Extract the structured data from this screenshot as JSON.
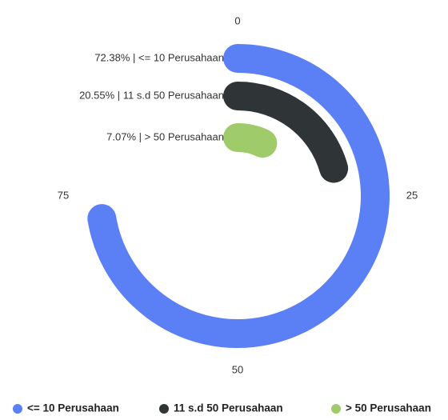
{
  "chart_data": {
    "type": "radialBar",
    "categories": [
      "<= 10 Perusahaan",
      "11 s.d 50 Perusahaan",
      "> 50 Perusahaan"
    ],
    "values": [
      72.38,
      20.55,
      7.07
    ],
    "value_labels": [
      "72.38% | <= 10 Perusahaan",
      "20.55% | 11 s.d 50 Perusahaan",
      "7.07% | > 50 Perusahaan"
    ],
    "colors": [
      "#5b7ff5",
      "#2f3437",
      "#9fcb6b"
    ],
    "ylim": [
      0,
      100
    ],
    "yticks": [
      0,
      25,
      50,
      75
    ],
    "legend": "bottom"
  }
}
